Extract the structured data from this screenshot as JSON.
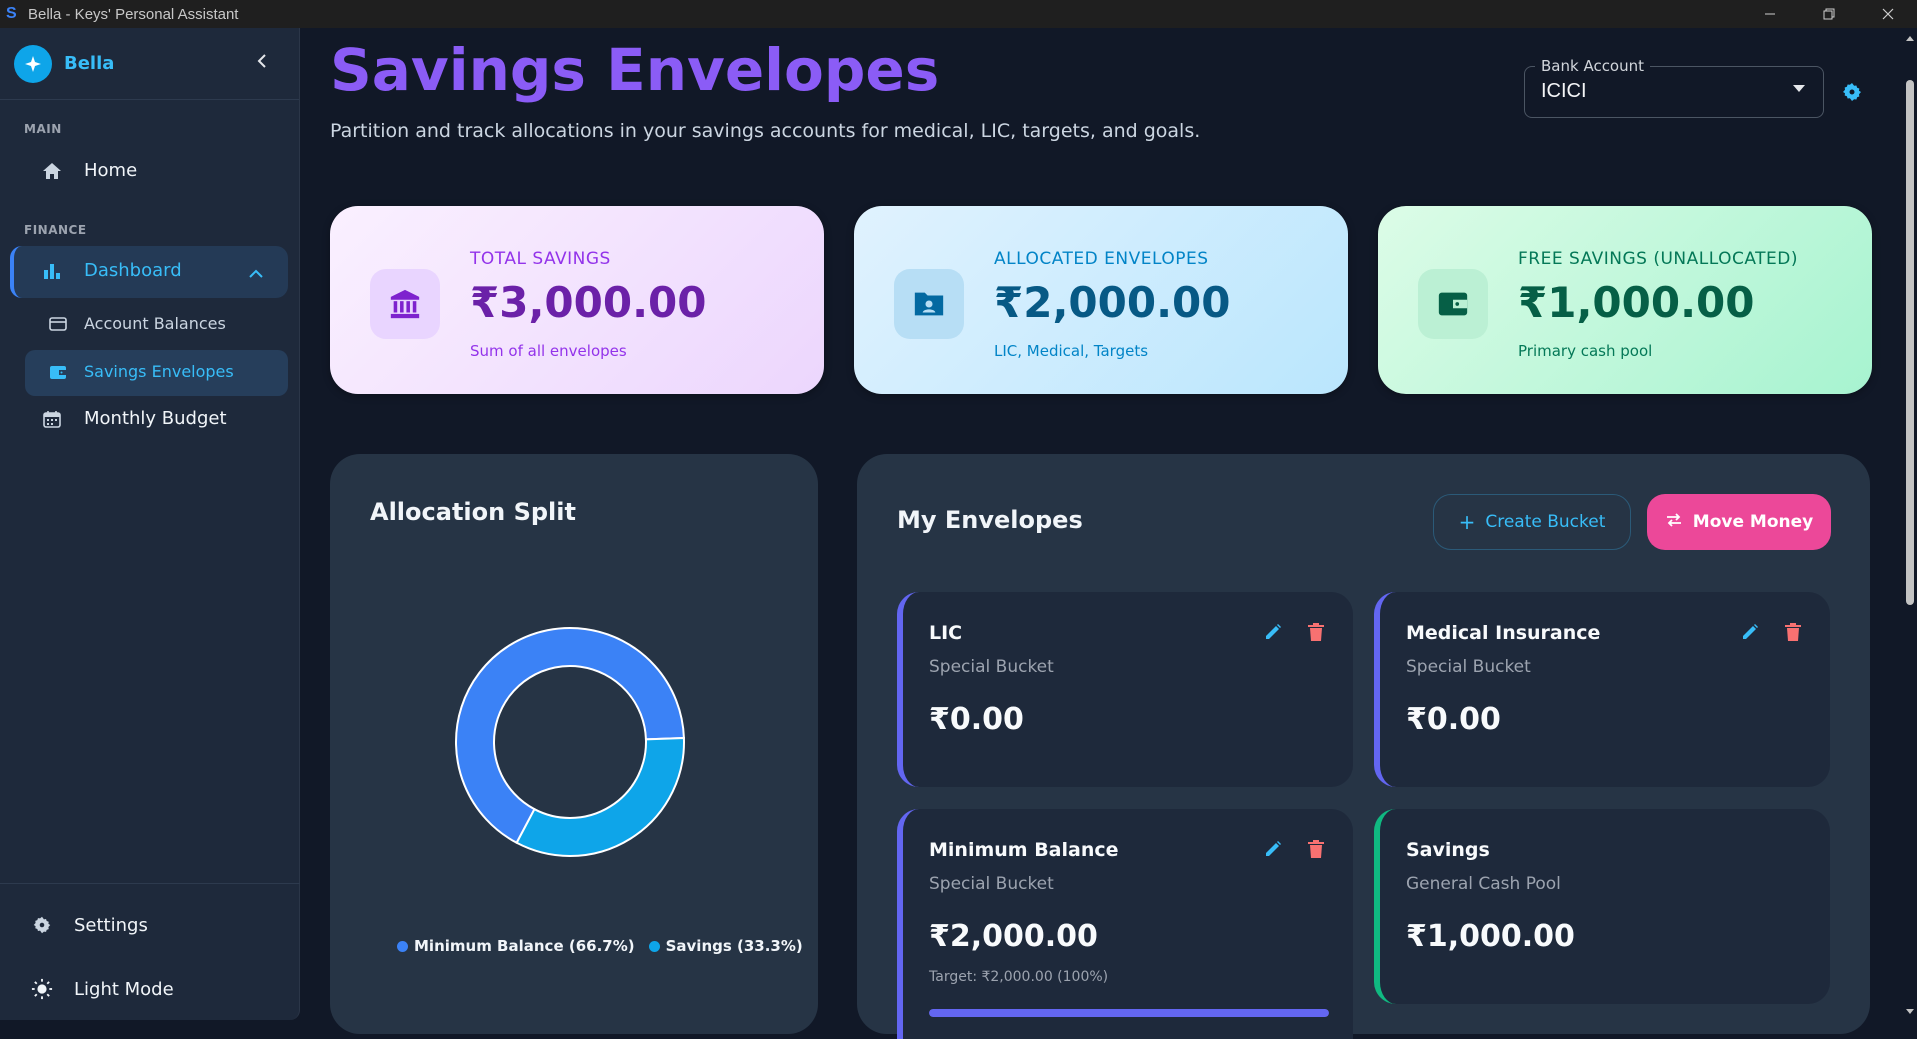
{
  "window": {
    "title": "Bella - Keys' Personal Assistant",
    "app_icon": "S"
  },
  "sidebar": {
    "brand": "Bella",
    "sections": {
      "main": "MAIN",
      "finance": "FINANCE"
    },
    "items": {
      "home": "Home",
      "dashboard": "Dashboard",
      "account_balances": "Account Balances",
      "savings_envelopes": "Savings Envelopes",
      "monthly_budget": "Monthly Budget",
      "settings": "Settings",
      "light_mode": "Light Mode"
    }
  },
  "header": {
    "title": "Savings Envelopes",
    "subtitle": "Partition and track allocations in your savings accounts for medical, LIC, targets, and goals.",
    "bank_account_label": "Bank Account",
    "bank_account_value": "ICICI"
  },
  "stats": [
    {
      "label": "TOTAL SAVINGS",
      "value": "₹3,000.00",
      "note": "Sum of all envelopes"
    },
    {
      "label": "ALLOCATED ENVELOPES",
      "value": "₹2,000.00",
      "note": "LIC, Medical, Targets"
    },
    {
      "label": "FREE SAVINGS (UNALLOCATED)",
      "value": "₹1,000.00",
      "note": "Primary cash pool"
    }
  ],
  "allocation": {
    "title": "Allocation Split",
    "legend": [
      "Minimum Balance (66.7%)",
      "Savings (33.3%)"
    ]
  },
  "chart_data": {
    "type": "pie",
    "categories": [
      "Minimum Balance",
      "Savings"
    ],
    "values": [
      66.7,
      33.3
    ],
    "colors": [
      "#3b82f6",
      "#0ea5e9"
    ],
    "legend": "bottom"
  },
  "envelopes": {
    "title": "My Envelopes",
    "create_label": "Create Bucket",
    "move_label": "Move Money",
    "items": [
      {
        "name": "LIC",
        "type": "Special Bucket",
        "amount": "₹0.00"
      },
      {
        "name": "Medical Insurance",
        "type": "Special Bucket",
        "amount": "₹0.00"
      },
      {
        "name": "Minimum Balance",
        "type": "Special Bucket",
        "amount": "₹2,000.00",
        "target": "Target: ₹2,000.00 (100%)",
        "progress": 1.0
      },
      {
        "name": "Savings",
        "type": "General Cash Pool",
        "amount": "₹1,000.00"
      }
    ]
  }
}
